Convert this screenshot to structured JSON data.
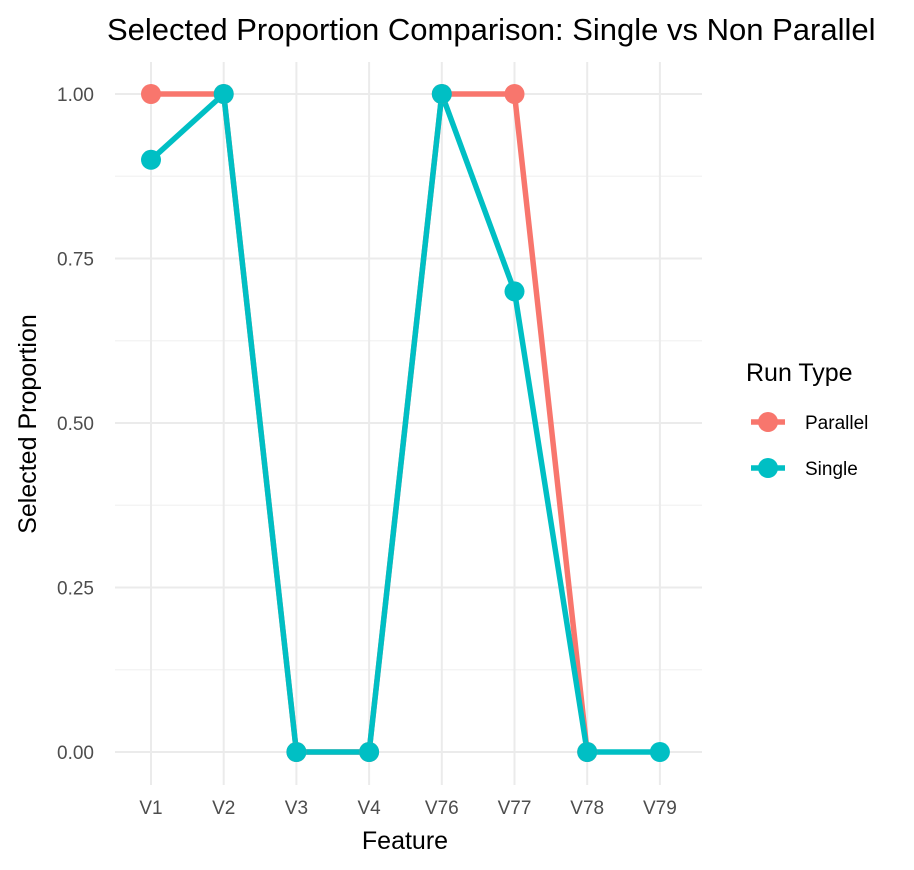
{
  "chart_data": {
    "type": "line",
    "title": "Selected Proportion Comparison: Single vs Non Parallel",
    "xlabel": "Feature",
    "ylabel": "Selected Proportion",
    "categories": [
      "V1",
      "V2",
      "V3",
      "V4",
      "V76",
      "V77",
      "V78",
      "V79"
    ],
    "ylim": [
      0,
      1
    ],
    "yticks": [
      "0.00",
      "0.25",
      "0.50",
      "0.75",
      "1.00"
    ],
    "grid": true,
    "legend": {
      "title": "Run Type",
      "position": "right"
    },
    "series": [
      {
        "name": "Parallel",
        "color": "#F8766D",
        "values": [
          1,
          1,
          0,
          0,
          1,
          1,
          0,
          null
        ]
      },
      {
        "name": "Single",
        "color": "#00BFC4",
        "values": [
          0.9,
          1,
          0,
          0,
          1,
          0.7,
          0,
          0
        ]
      }
    ]
  }
}
